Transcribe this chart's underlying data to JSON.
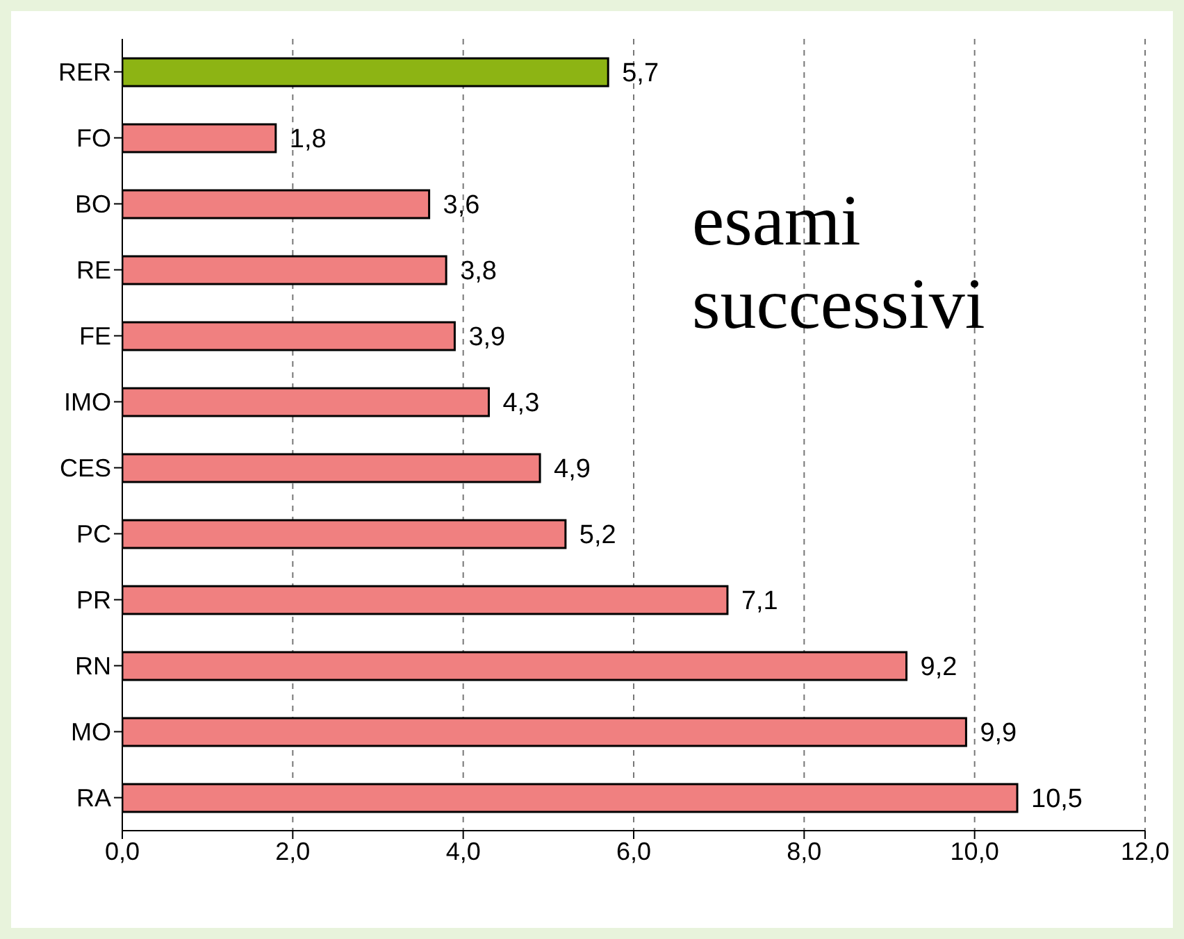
{
  "chart_data": {
    "type": "bar",
    "orientation": "horizontal",
    "categories": [
      "RER",
      "FO",
      "BO",
      "RE",
      "FE",
      "IMO",
      "CES",
      "PC",
      "PR",
      "RN",
      "MO",
      "RA"
    ],
    "values": [
      5.7,
      1.8,
      3.6,
      3.8,
      3.9,
      4.3,
      4.9,
      5.2,
      7.1,
      9.2,
      9.9,
      10.5
    ],
    "colors": [
      "#8db414",
      "#f08080",
      "#f08080",
      "#f08080",
      "#f08080",
      "#f08080",
      "#f08080",
      "#f08080",
      "#f08080",
      "#f08080",
      "#f08080",
      "#f08080"
    ],
    "value_labels": [
      "5,7",
      "1,8",
      "3,6",
      "3,8",
      "3,9",
      "4,3",
      "4,9",
      "5,2",
      "7,1",
      "9,2",
      "9,9",
      "10,5"
    ],
    "xlim": [
      0,
      12
    ],
    "xticks": [
      {
        "value": 0,
        "label": "0,0"
      },
      {
        "value": 2,
        "label": "2,0"
      },
      {
        "value": 4,
        "label": "4,0"
      },
      {
        "value": 6,
        "label": "6,0"
      },
      {
        "value": 8,
        "label": "8,0"
      },
      {
        "value": 10,
        "label": "10,0"
      },
      {
        "value": 12,
        "label": "12,0"
      }
    ],
    "grid": "x",
    "annotations": [
      "esami successivi"
    ]
  }
}
